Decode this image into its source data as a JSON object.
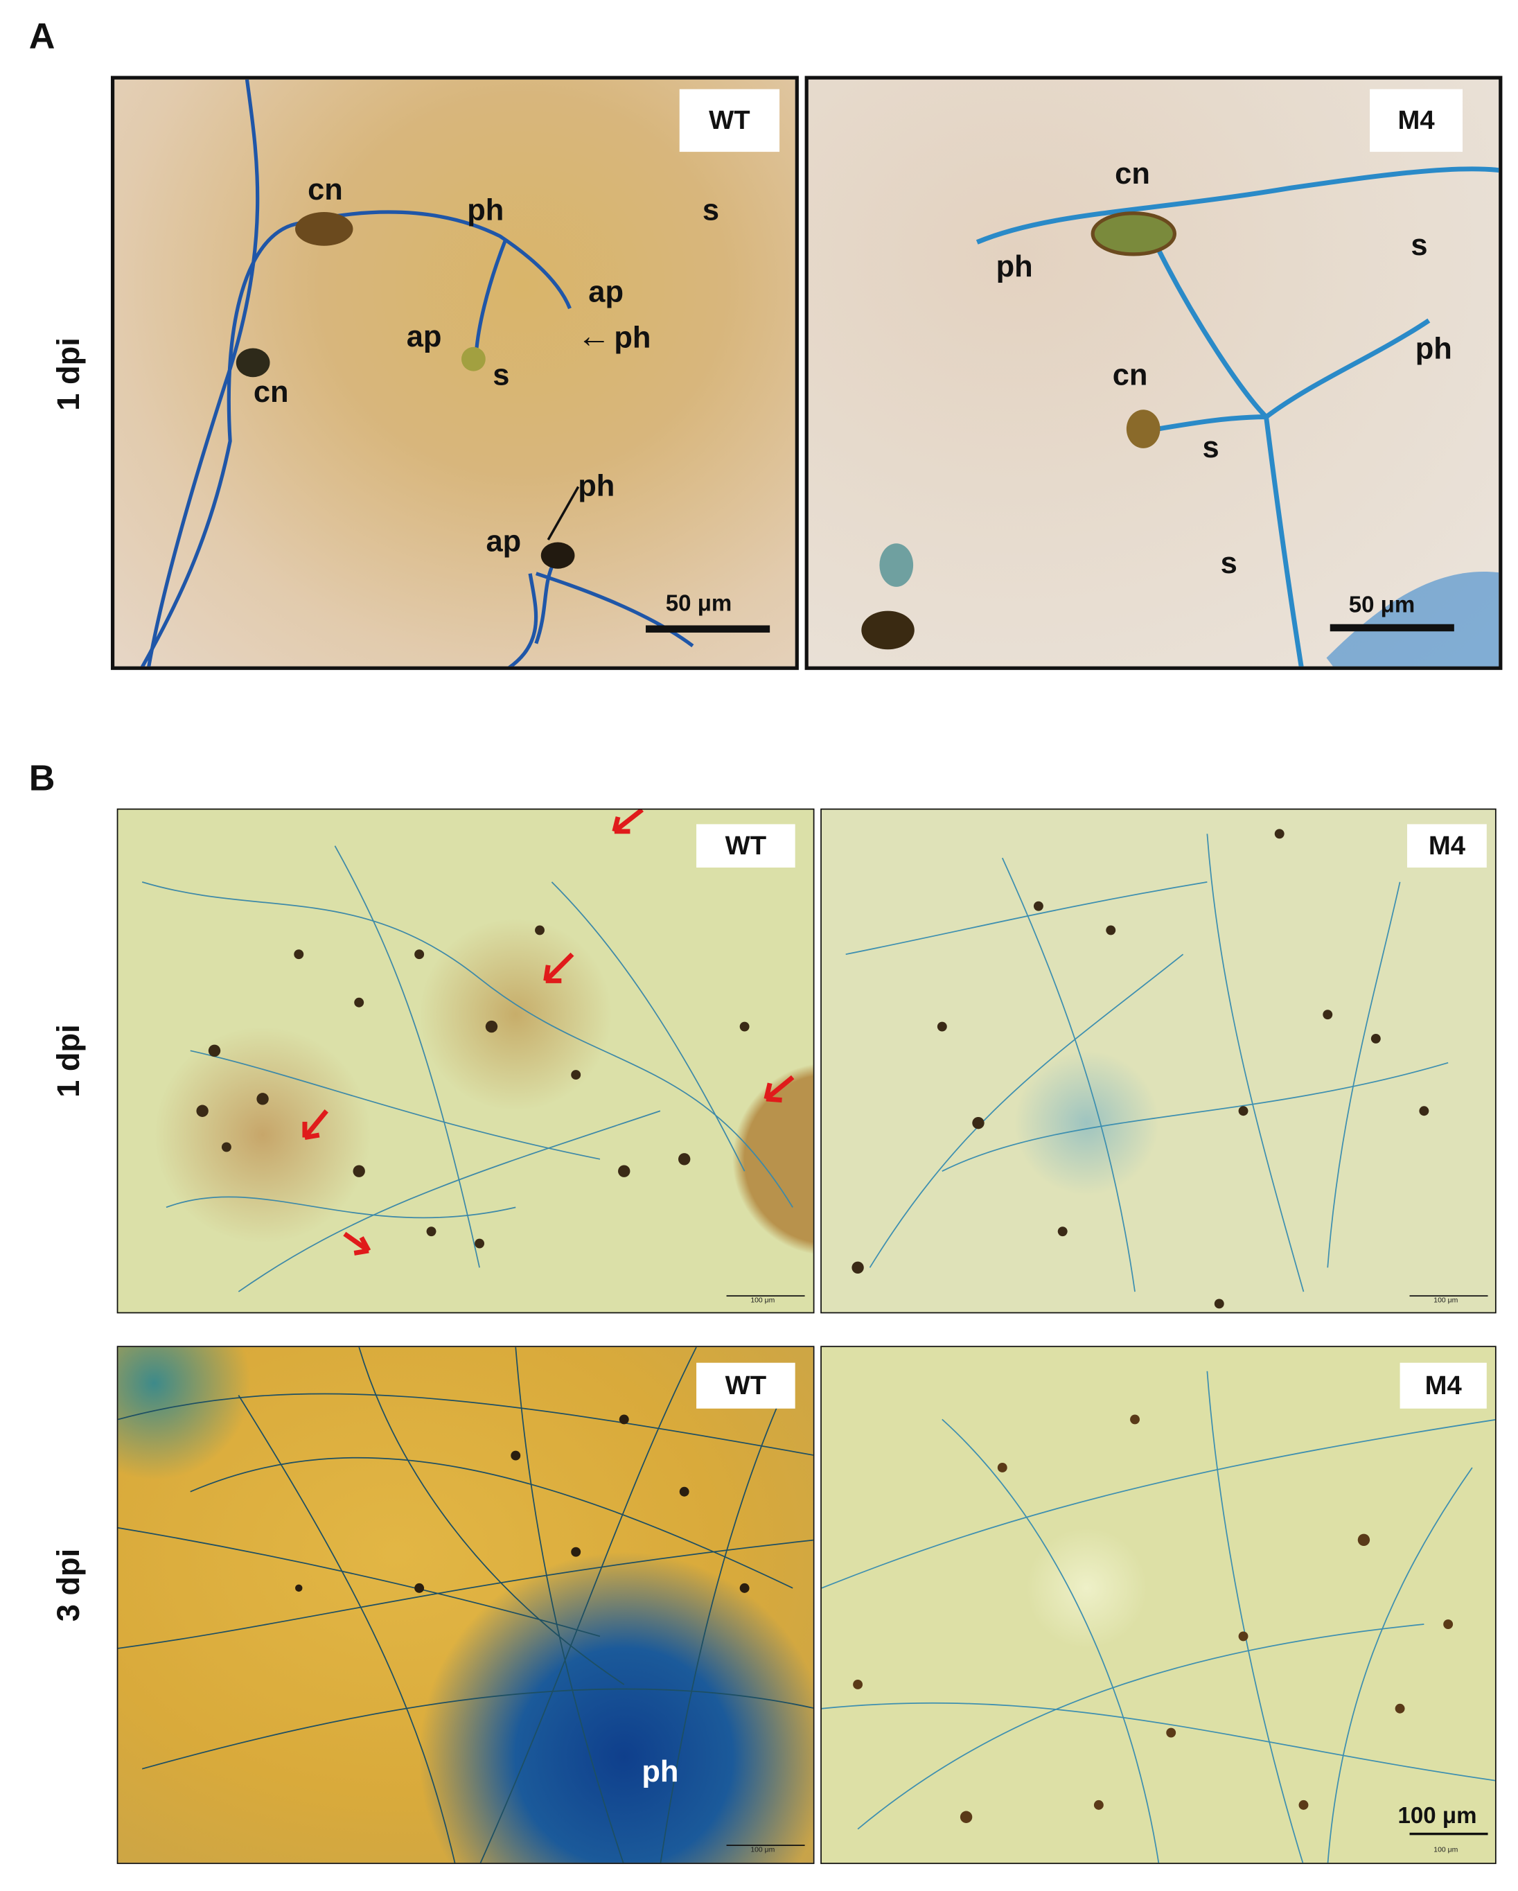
{
  "panel_a": {
    "label": "A",
    "row_label": "1 dpi",
    "images": [
      {
        "tag": "WT",
        "annotations": [
          "cn",
          "ph",
          "s",
          "ap",
          "ap",
          "ph",
          "s",
          "cn",
          "ph",
          "ap"
        ],
        "scale_bar": "50 μm"
      },
      {
        "tag": "M4",
        "annotations": [
          "cn",
          "s",
          "ph",
          "ph",
          "cn",
          "s",
          "s"
        ],
        "scale_bar": "50 μm"
      }
    ]
  },
  "panel_b": {
    "label": "B",
    "rows": [
      {
        "row_label": "1 dpi",
        "images": [
          {
            "tag": "WT",
            "scale_bar": "100 μm"
          },
          {
            "tag": "M4",
            "scale_bar": "100 μm"
          }
        ]
      },
      {
        "row_label": "3 dpi",
        "images": [
          {
            "tag": "WT",
            "annotation": "ph",
            "scale_bar": "100 μm"
          },
          {
            "tag": "M4",
            "scale_bar": "100 μm",
            "scale_bar_large": "100 μm"
          }
        ]
      }
    ]
  }
}
